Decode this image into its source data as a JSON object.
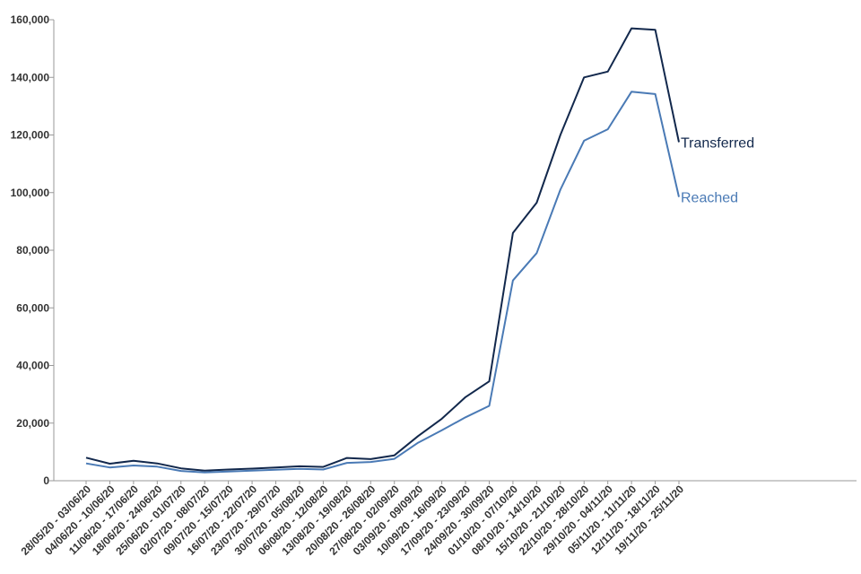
{
  "chart_data": {
    "type": "line",
    "title": "",
    "xlabel": "",
    "ylabel": "",
    "ylim": [
      0,
      160000
    ],
    "yticks": [
      0,
      20000,
      40000,
      60000,
      80000,
      100000,
      120000,
      140000,
      160000
    ],
    "ytick_labels": [
      "0",
      "20,000",
      "40,000",
      "60,000",
      "80,000",
      "100,000",
      "120,000",
      "140,000",
      "160,000"
    ],
    "grid": false,
    "categories": [
      "28/05/20 - 03/06/20",
      "04/06/20 - 10/06/20",
      "11/06/20 - 17/06/20",
      "18/06/20 - 24/06/20",
      "25/06/20 - 01/07/20",
      "02/07/20 - 08/07/20",
      "09/07/20 - 15/07/20",
      "16/07/20 - 22/07/20",
      "23/07/20 - 29/07/20",
      "30/07/20 - 05/08/20",
      "06/08/20 - 12/08/20",
      "13/08/20 - 19/08/20",
      "20/08/20 - 26/08/20",
      "27/08/20 - 02/09/20",
      "03/09/20 - 09/09/20",
      "10/09/20 - 16/09/20",
      "17/09/20 - 23/09/20",
      "24/09/20 - 30/09/20",
      "01/10/20 - 07/10/20",
      "08/10/20 - 14/10/20",
      "15/10/20 - 21/10/20",
      "22/10/20 - 28/10/20",
      "29/10/20 - 04/11/20",
      "05/11/20 - 11/11/20",
      "12/11/20 - 18/11/20",
      "19/11/20 - 25/11/20"
    ],
    "series": [
      {
        "name": "Transferred",
        "color": "#12284c",
        "values": [
          8000,
          5900,
          6900,
          6000,
          4300,
          3500,
          3900,
          4200,
          4600,
          5000,
          4800,
          7900,
          7500,
          8800,
          15500,
          21500,
          29000,
          34500,
          86000,
          96500,
          120000,
          140000,
          142000,
          157000,
          156500,
          117500
        ]
      },
      {
        "name": "Reached",
        "color": "#4a7ab5",
        "values": [
          6000,
          4600,
          5300,
          4900,
          3400,
          2900,
          3200,
          3500,
          3800,
          4100,
          3900,
          6200,
          6500,
          7600,
          13200,
          17500,
          22000,
          26000,
          69500,
          79000,
          101000,
          118000,
          122000,
          135000,
          134200,
          98500
        ]
      }
    ]
  }
}
